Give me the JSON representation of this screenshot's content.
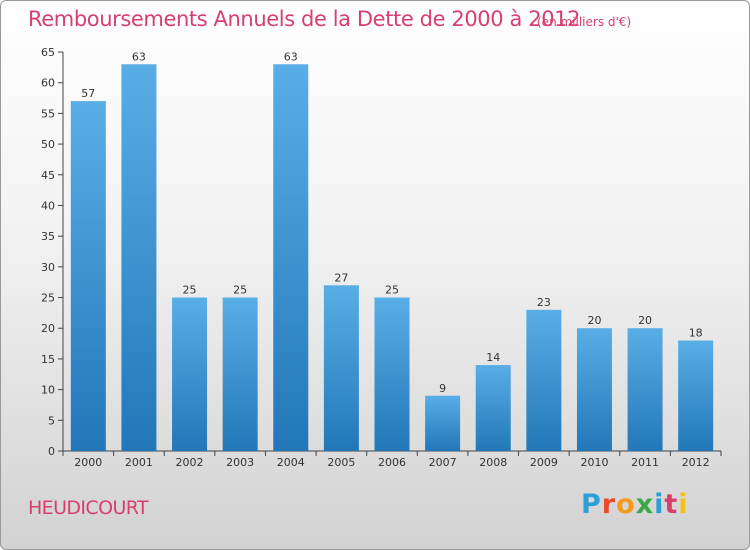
{
  "header": {
    "title": "Remboursements Annuels de la Dette de 2000 à 2012",
    "subtitle": "(en milliers d'€)"
  },
  "footer": {
    "place": "HEUDICOURT",
    "logo_text": "Proxiti",
    "logo_colors": [
      "#2a9fd8",
      "#e84a2c",
      "#f29a1c",
      "#3aa845",
      "#2a9fd8",
      "#d93f6e",
      "#f2c21c"
    ]
  },
  "colors": {
    "title": "#d93f6e",
    "bar_top": "#5aaee6",
    "bar_bottom": "#2277b8"
  },
  "chart_data": {
    "type": "bar",
    "categories": [
      "2000",
      "2001",
      "2002",
      "2003",
      "2004",
      "2005",
      "2006",
      "2007",
      "2008",
      "2009",
      "2010",
      "2011",
      "2012"
    ],
    "values": [
      57,
      63,
      25,
      25,
      63,
      27,
      25,
      9,
      14,
      23,
      20,
      20,
      18
    ],
    "ylim": [
      0,
      65
    ],
    "yticks": [
      0,
      5,
      10,
      15,
      20,
      25,
      30,
      35,
      40,
      45,
      50,
      55,
      60,
      65
    ],
    "grid": false
  }
}
